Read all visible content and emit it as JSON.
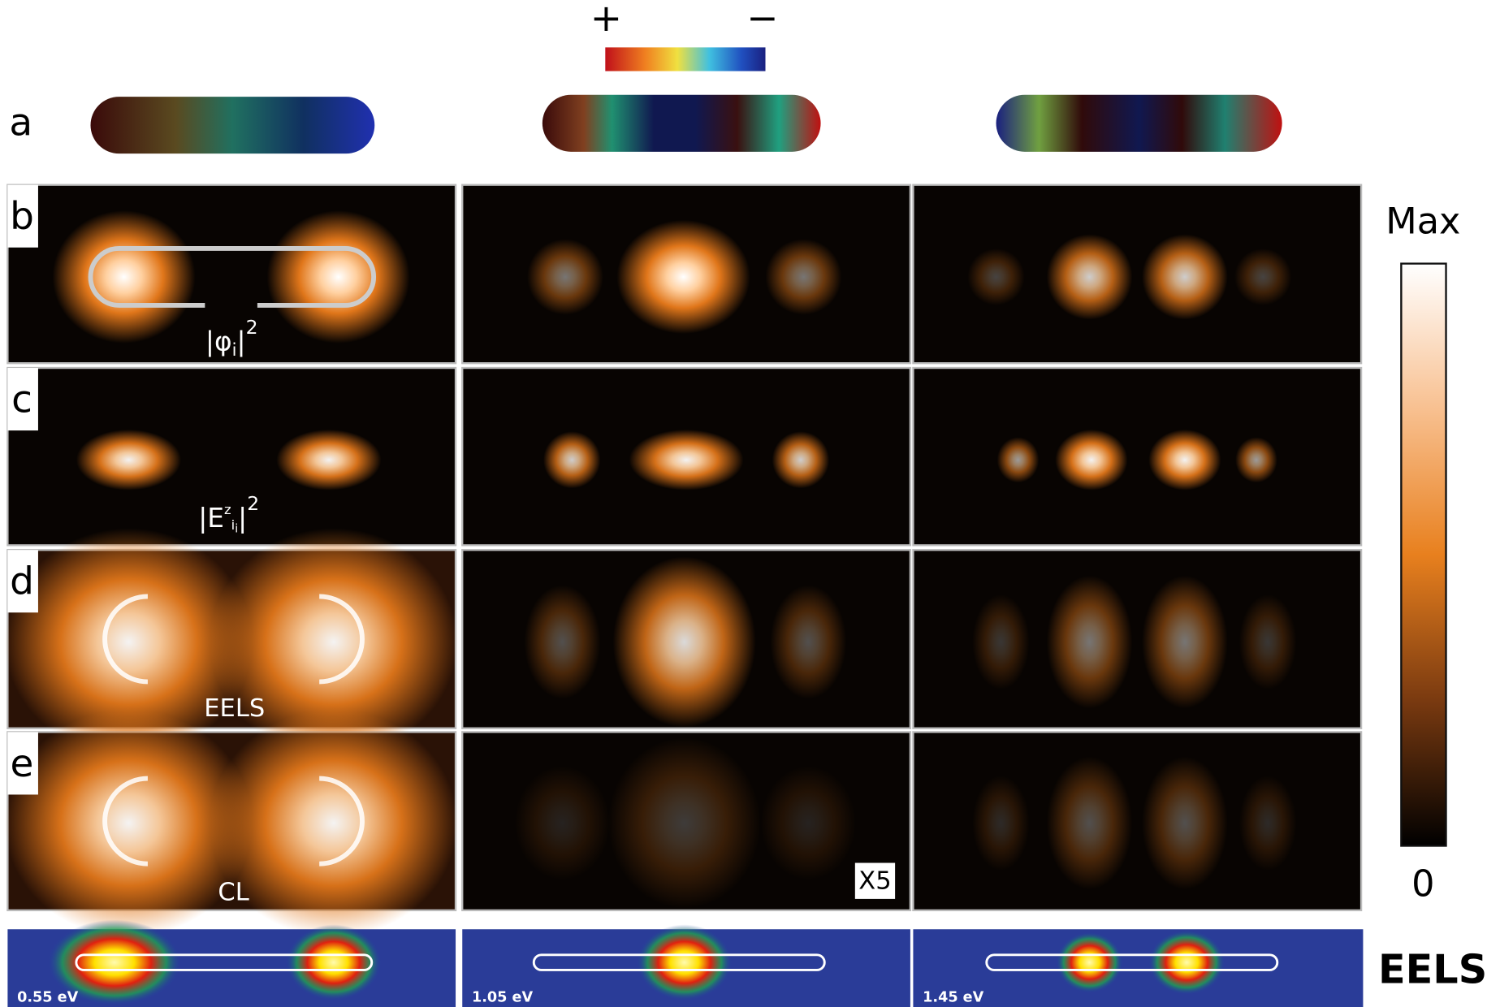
{
  "header": {
    "plus": "+",
    "minus": "−"
  },
  "row_labels": [
    "a",
    "b",
    "c",
    "d",
    "e"
  ],
  "annotations": {
    "phi": {
      "open": "|φ",
      "sub": "i",
      "close": "|",
      "sup": "2"
    },
    "efield": {
      "open": "|E",
      "sup_inner": "z",
      "sub": "i",
      "sub2": "i",
      "close": "|",
      "sup": "2"
    },
    "eels": "EELS",
    "cl": "CL",
    "scale": "X5"
  },
  "colorbar": {
    "max": "Max",
    "min": "0"
  },
  "experiment": {
    "energies": [
      "0.55 eV",
      "1.05 eV",
      "1.45 eV"
    ],
    "label": "EELS"
  }
}
